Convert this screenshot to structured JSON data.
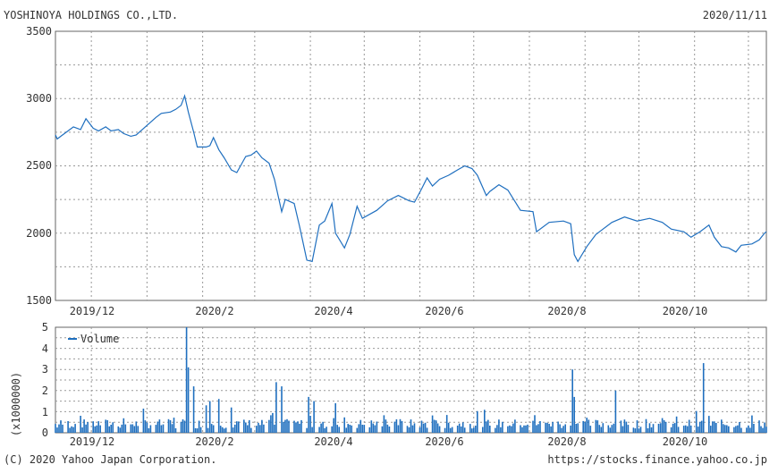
{
  "header": {
    "company": "YOSHINOYA HOLDINGS CO.,LTD.",
    "date": "2020/11/11"
  },
  "footer": {
    "copyright": "(C) 2020 Yahoo Japan Corporation.",
    "url": "https://stocks.finance.yahoo.co.jp"
  },
  "colors": {
    "line": "#1f6fbf",
    "grid": "#999999",
    "frame": "#666666"
  },
  "chart_data": [
    {
      "type": "line",
      "x_tick_labels": [
        "2019/12",
        "2020/2",
        "2020/4",
        "2020/6",
        "2020/8",
        "2020/10"
      ],
      "y_tick_labels": [
        "3500",
        "3000",
        "2500",
        "2000",
        "1500"
      ],
      "ylim": [
        1500,
        3500
      ],
      "grid": true,
      "points": [
        [
          "2019-11-11",
          2730
        ],
        [
          "2019-11-12",
          2700
        ],
        [
          "2019-11-14",
          2720
        ],
        [
          "2019-11-18",
          2760
        ],
        [
          "2019-11-21",
          2790
        ],
        [
          "2019-11-25",
          2770
        ],
        [
          "2019-11-28",
          2850
        ],
        [
          "2019-12-02",
          2780
        ],
        [
          "2019-12-05",
          2760
        ],
        [
          "2019-12-09",
          2790
        ],
        [
          "2019-12-12",
          2760
        ],
        [
          "2019-12-16",
          2770
        ],
        [
          "2019-12-19",
          2740
        ],
        [
          "2019-12-23",
          2720
        ],
        [
          "2019-12-26",
          2730
        ],
        [
          "2020-01-06",
          2860
        ],
        [
          "2020-01-09",
          2890
        ],
        [
          "2020-01-14",
          2900
        ],
        [
          "2020-01-17",
          2920
        ],
        [
          "2020-01-20",
          2950
        ],
        [
          "2020-01-22",
          3020
        ],
        [
          "2020-01-24",
          2900
        ],
        [
          "2020-01-27",
          2750
        ],
        [
          "2020-01-29",
          2640
        ],
        [
          "2020-02-03",
          2640
        ],
        [
          "2020-02-05",
          2650
        ],
        [
          "2020-02-07",
          2710
        ],
        [
          "2020-02-10",
          2620
        ],
        [
          "2020-02-13",
          2560
        ],
        [
          "2020-02-17",
          2470
        ],
        [
          "2020-02-20",
          2450
        ],
        [
          "2020-02-25",
          2570
        ],
        [
          "2020-02-28",
          2580
        ],
        [
          "2020-03-02",
          2610
        ],
        [
          "2020-03-05",
          2560
        ],
        [
          "2020-03-09",
          2520
        ],
        [
          "2020-03-12",
          2400
        ],
        [
          "2020-03-16",
          2160
        ],
        [
          "2020-03-18",
          2250
        ],
        [
          "2020-03-23",
          2220
        ],
        [
          "2020-03-26",
          2050
        ],
        [
          "2020-03-30",
          1800
        ],
        [
          "2020-04-02",
          1790
        ],
        [
          "2020-04-06",
          2060
        ],
        [
          "2020-04-09",
          2090
        ],
        [
          "2020-04-13",
          2220
        ],
        [
          "2020-04-15",
          2000
        ],
        [
          "2020-04-20",
          1890
        ],
        [
          "2020-04-23",
          1990
        ],
        [
          "2020-04-27",
          2200
        ],
        [
          "2020-04-30",
          2110
        ],
        [
          "2020-05-08",
          2170
        ],
        [
          "2020-05-14",
          2240
        ],
        [
          "2020-05-20",
          2280
        ],
        [
          "2020-05-26",
          2240
        ],
        [
          "2020-05-29",
          2230
        ],
        [
          "2020-06-02",
          2330
        ],
        [
          "2020-06-05",
          2410
        ],
        [
          "2020-06-08",
          2350
        ],
        [
          "2020-06-12",
          2400
        ],
        [
          "2020-06-17",
          2430
        ],
        [
          "2020-06-22",
          2470
        ],
        [
          "2020-06-26",
          2500
        ],
        [
          "2020-06-30",
          2480
        ],
        [
          "2020-07-03",
          2430
        ],
        [
          "2020-07-08",
          2280
        ],
        [
          "2020-07-10",
          2310
        ],
        [
          "2020-07-15",
          2360
        ],
        [
          "2020-07-20",
          2320
        ],
        [
          "2020-07-27",
          2170
        ],
        [
          "2020-08-03",
          2160
        ],
        [
          "2020-08-05",
          2010
        ],
        [
          "2020-08-12",
          2080
        ],
        [
          "2020-08-20",
          2090
        ],
        [
          "2020-08-24",
          2070
        ],
        [
          "2020-08-26",
          1840
        ],
        [
          "2020-08-28",
          1790
        ],
        [
          "2020-09-02",
          1900
        ],
        [
          "2020-09-07",
          1990
        ],
        [
          "2020-09-11",
          2030
        ],
        [
          "2020-09-16",
          2080
        ],
        [
          "2020-09-23",
          2120
        ],
        [
          "2020-09-30",
          2090
        ],
        [
          "2020-10-07",
          2110
        ],
        [
          "2020-10-14",
          2080
        ],
        [
          "2020-10-19",
          2030
        ],
        [
          "2020-10-26",
          2010
        ],
        [
          "2020-10-30",
          1970
        ],
        [
          "2020-11-04",
          2010
        ],
        [
          "2020-11-09",
          2060
        ],
        [
          "2020-11-12",
          1970
        ],
        [
          "2020-11-16",
          1900
        ],
        [
          "2020-11-20",
          1890
        ],
        [
          "2020-11-24",
          1860
        ],
        [
          "2020-11-27",
          1910
        ],
        [
          "2020-12-03",
          1920
        ],
        [
          "2020-12-07",
          1950
        ],
        [
          "2020-12-10",
          2000
        ],
        [
          "2020-12-11",
          2010
        ]
      ]
    },
    {
      "type": "bar",
      "legend": "Volume",
      "ylabel": "(x1000000)",
      "x_tick_labels": [
        "2019/12",
        "2020/2",
        "2020/4",
        "2020/6",
        "2020/8",
        "2020/10"
      ],
      "y_tick_labels": [
        "5",
        "4",
        "3",
        "2",
        "1",
        "0"
      ],
      "ylim": [
        0,
        5
      ],
      "grid": true,
      "spikes": [
        [
          "2020-01-23",
          5.0
        ],
        [
          "2020-01-24",
          3.1
        ],
        [
          "2020-01-27",
          2.2
        ],
        [
          "2020-02-03",
          1.3
        ],
        [
          "2020-02-05",
          1.5
        ],
        [
          "2020-02-10",
          1.6
        ],
        [
          "2020-02-17",
          1.2
        ],
        [
          "2020-03-13",
          2.4
        ],
        [
          "2020-03-16",
          2.2
        ],
        [
          "2020-03-31",
          1.7
        ],
        [
          "2020-04-03",
          1.5
        ],
        [
          "2020-04-15",
          1.4
        ],
        [
          "2020-08-25",
          3.0
        ],
        [
          "2020-08-26",
          1.7
        ],
        [
          "2020-09-18",
          2.0
        ],
        [
          "2020-11-06",
          3.3
        ],
        [
          "2020-11-09",
          0.8
        ]
      ]
    }
  ]
}
